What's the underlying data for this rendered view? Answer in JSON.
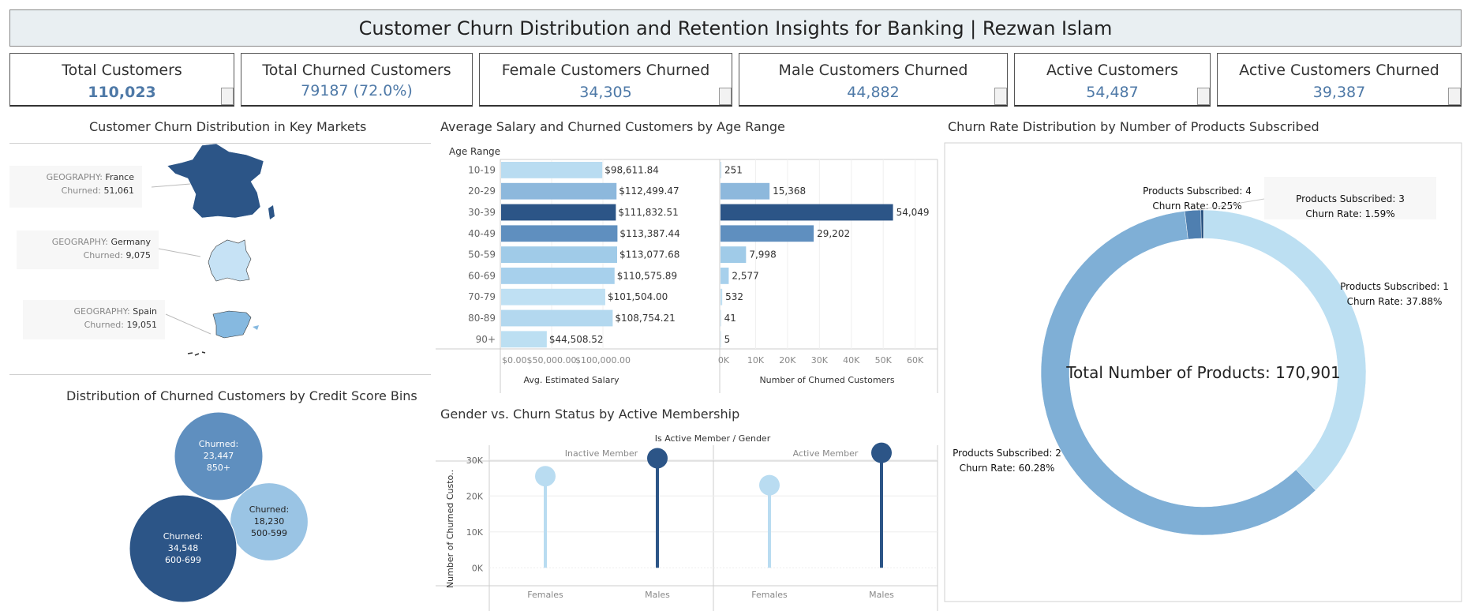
{
  "header": {
    "title": "Customer Churn Distribution and Retention Insights for Banking | Rezwan Islam"
  },
  "kpis": [
    {
      "label": "Total Customers",
      "value": "110,023"
    },
    {
      "label": "Total Churned Customers",
      "value": "79187 (72.0%)"
    },
    {
      "label": "Female Customers Churned",
      "value": "34,305"
    },
    {
      "label": "Male Customers Churned",
      "value": "44,882"
    },
    {
      "label": "Active Customers",
      "value": "54,487"
    },
    {
      "label": "Active Customers Churned",
      "value": "39,387"
    }
  ],
  "map_panel": {
    "title": "Customer Churn Distribution in Key Markets",
    "field_label": "GEOGRAPHY:",
    "churned_label": "Churned:",
    "markets": [
      {
        "geography": "France",
        "churned": "51,061",
        "color": "#2c5587"
      },
      {
        "geography": "Germany",
        "churned": "9,075",
        "color": "#c6e2f5"
      },
      {
        "geography": "Spain",
        "churned": "19,051",
        "color": "#86b9e0"
      }
    ]
  },
  "bubble_panel": {
    "title": "Distribution of Churned Customers by Credit Score Bins"
  },
  "salary_panel": {
    "title": "Average Salary and Churned Customers by Age Range"
  },
  "gender_panel": {
    "title": "Gender vs. Churn Status by Active Membership"
  },
  "donut_panel": {
    "title": "Churn Rate Distribution by Number of Products Subscribed"
  },
  "chart_data": [
    {
      "id": "credit-score-bubbles",
      "type": "bubble",
      "title": "Distribution of Churned Customers by Credit Score Bins",
      "value_label": "Churned:",
      "bins": [
        {
          "bin": "850+",
          "churned": 23447,
          "churned_text": "23,447",
          "color": "#5f8fbf",
          "text_color": "#ffffff"
        },
        {
          "bin": "500-599",
          "churned": 18230,
          "churned_text": "18,230",
          "color": "#9ac4e4",
          "text_color": "#222222"
        },
        {
          "bin": "600-699",
          "churned": 34548,
          "churned_text": "34,548",
          "color": "#2c5587",
          "text_color": "#ffffff"
        }
      ]
    },
    {
      "id": "age-range-bars",
      "type": "bar",
      "title": "Average Salary and Churned Customers by Age Range",
      "row_header": "Age Range",
      "categories": [
        "10-19",
        "20-29",
        "30-39",
        "40-49",
        "50-59",
        "60-69",
        "70-79",
        "80-89",
        "90+"
      ],
      "salary": {
        "xlabel": "Avg. Estimated Salary",
        "values": [
          98611.84,
          112499.47,
          111832.51,
          113387.44,
          113077.68,
          110575.89,
          101504.0,
          108754.21,
          44508.52
        ],
        "labels": [
          "$98,611.84",
          "$112,499.47",
          "$111,832.51",
          "$113,387.44",
          "$113,077.68",
          "$110,575.89",
          "$101,504.00",
          "$108,754.21",
          "$44,508.52"
        ],
        "xlim": [
          0,
          140000
        ],
        "ticks": [
          0,
          50000,
          100000
        ],
        "tick_labels": [
          "$0.00",
          "$50,000.00",
          "$100,000.00"
        ]
      },
      "churned": {
        "xlabel": "Number of Churned Customers",
        "values": [
          251,
          15368,
          54049,
          29202,
          7998,
          2577,
          532,
          41,
          5
        ],
        "labels": [
          "251",
          "15,368",
          "54,049",
          "29,202",
          "7,998",
          "2,577",
          "532",
          "41",
          "5"
        ],
        "xlim": [
          0,
          68000
        ],
        "ticks": [
          0,
          10000,
          20000,
          30000,
          40000,
          50000,
          60000
        ],
        "tick_labels": [
          "0K",
          "10K",
          "20K",
          "30K",
          "40K",
          "50K",
          "60K"
        ]
      },
      "bar_colors": [
        "#b9dcf1",
        "#8db8dc",
        "#2c5587",
        "#5f8fbf",
        "#a0cbe8",
        "#a7d0ec",
        "#bfe0f3",
        "#b3d8ef",
        "#bcdff2"
      ]
    },
    {
      "id": "gender-lollipop",
      "type": "lollipop",
      "title": "Gender vs. Churn Status by Active Membership",
      "header": "Is Active Member  /  Gender",
      "ylabel": "Number of Churned Custo..",
      "ylim": [
        -5000,
        35000
      ],
      "ticks": [
        0,
        10000,
        20000,
        30000
      ],
      "tick_labels": [
        "0K",
        "10K",
        "20K",
        "30K"
      ],
      "groups": [
        {
          "name": "Inactive Member",
          "females": 25500,
          "males": 30500
        },
        {
          "name": "Active Member",
          "females": 23000,
          "males": 32000
        }
      ],
      "categories": [
        "Females",
        "Males"
      ],
      "colors": {
        "Females": "#b9dcf1",
        "Males": "#2c5587"
      }
    },
    {
      "id": "products-donut",
      "type": "pie",
      "title": "Churn Rate Distribution by Number of Products Subscribed",
      "center_label": "Total Number of Products: 170,901",
      "slices": [
        {
          "name": "Products Subscribed: 1",
          "rate_label": "Churn Rate: 37.88%",
          "value": 37.88,
          "color": "#bcdff2"
        },
        {
          "name": "Products Subscribed: 2",
          "rate_label": "Churn Rate: 60.28%",
          "value": 60.28,
          "color": "#7fafd6"
        },
        {
          "name": "Products Subscribed: 3",
          "rate_label": "Churn Rate: 1.59%",
          "value": 1.59,
          "color": "#4f7fb0"
        },
        {
          "name": "Products Subscribed: 4",
          "rate_label": "Churn Rate: 0.25%",
          "value": 0.25,
          "color": "#1f4a7a"
        }
      ]
    }
  ]
}
